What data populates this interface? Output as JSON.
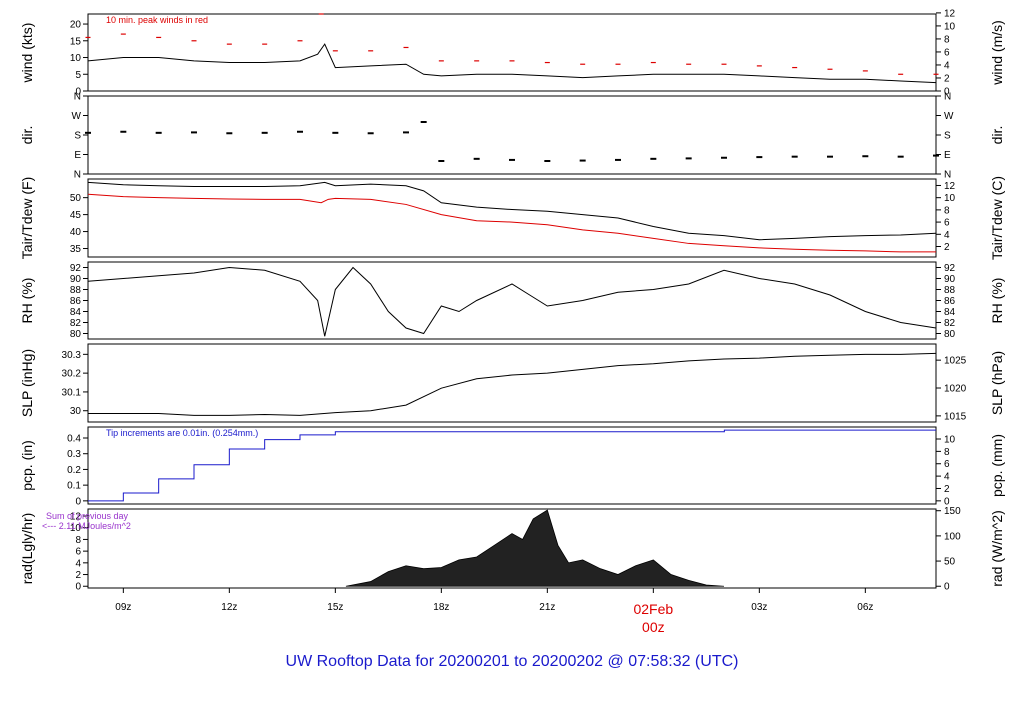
{
  "footer": {
    "title": "UW Rooftop Data for 20200201  to  20200202 @ 07:58:32  (UTC)",
    "title_color": "#1a1acc"
  },
  "time_axis": {
    "tick_labels": [
      "09z",
      "12z",
      "15z",
      "18z",
      "21z",
      "03z",
      "06z"
    ],
    "tick_hours": [
      9,
      12,
      15,
      18,
      21,
      27,
      30
    ],
    "date_label": "02Feb",
    "date_sublabel": "00z",
    "date_hour": 24,
    "date_color": "#dd0000",
    "range_hours": [
      8,
      32
    ]
  },
  "chart_data": [
    {
      "type": "line",
      "ylabel": "wind (kts)",
      "ylabel_right": "wind (m/s)",
      "yticks": [
        0,
        5,
        10,
        15,
        20
      ],
      "ylim": [
        0,
        23
      ],
      "yticks_right": [
        0,
        2,
        4,
        6,
        8,
        10,
        12
      ],
      "ylim_right": [
        0,
        11.83
      ],
      "annotation": "10 min. peak winds in red",
      "annotation_color": "#dd0000",
      "series": [
        {
          "color": "#000000",
          "x": [
            8,
            9,
            10,
            11,
            12,
            13,
            14,
            14.5,
            14.7,
            15,
            16,
            17,
            17.5,
            18,
            19,
            20,
            21,
            22,
            23,
            24,
            25,
            26,
            27,
            28,
            29,
            30,
            31,
            32
          ],
          "y": [
            9,
            10,
            10,
            9,
            8.5,
            8.5,
            9,
            11,
            14,
            7,
            7.5,
            8,
            5,
            4.5,
            5,
            5,
            4.5,
            4,
            4.5,
            5,
            5,
            5,
            4.5,
            4,
            3.5,
            3.5,
            3,
            2.5
          ]
        },
        {
          "color": "#dd0000",
          "style": "dash-marks",
          "x": [
            8,
            9,
            10,
            11,
            12,
            13,
            14,
            14.6,
            15,
            16,
            17,
            18,
            19,
            20,
            21,
            22,
            23,
            24,
            25,
            26,
            27,
            28,
            29,
            30,
            31,
            32
          ],
          "y": [
            16,
            17,
            16,
            15,
            14,
            14,
            15,
            23,
            12,
            12,
            13,
            9,
            9,
            9,
            8.5,
            8,
            8,
            8.5,
            8,
            8,
            7.5,
            7,
            6.5,
            6,
            5,
            5
          ]
        }
      ]
    },
    {
      "type": "scatter",
      "ylabel": "dir.",
      "ylabel_right": "dir.",
      "ytick_labels": [
        "N",
        "E",
        "S",
        "W",
        "N"
      ],
      "yticks": [
        0,
        90,
        180,
        270,
        360
      ],
      "ylim": [
        0,
        360
      ],
      "series": [
        {
          "color": "#000000",
          "x": [
            8,
            9,
            10,
            11,
            12,
            13,
            14,
            15,
            16,
            17,
            17.5,
            18,
            19,
            20,
            21,
            22,
            23,
            24,
            25,
            26,
            27,
            28,
            29,
            30,
            31,
            32
          ],
          "y": [
            190,
            195,
            190,
            192,
            188,
            190,
            195,
            190,
            188,
            192,
            240,
            60,
            70,
            65,
            60,
            62,
            65,
            70,
            72,
            75,
            78,
            80,
            80,
            82,
            80,
            85
          ]
        }
      ]
    },
    {
      "type": "line",
      "ylabel": "Tair/Tdew (F)",
      "ylabel_right": "Tair/Tdew (C)",
      "yticks": [
        35,
        40,
        45,
        50
      ],
      "ylim": [
        32.5,
        55.5
      ],
      "yticks_right": [
        2,
        4,
        6,
        8,
        10,
        12
      ],
      "ylim_right": [
        0.28,
        13.06
      ],
      "series": [
        {
          "color": "#000000",
          "x": [
            8,
            9,
            10,
            11,
            12,
            13,
            14,
            14.7,
            15,
            16,
            17,
            17.5,
            18,
            19,
            20,
            21,
            22,
            23,
            24,
            25,
            26,
            27,
            28,
            29,
            30,
            31,
            32
          ],
          "y": [
            54.5,
            53.8,
            53.5,
            53.3,
            53.3,
            53.3,
            53.5,
            54.5,
            53.5,
            54,
            53.5,
            52,
            48.5,
            47.2,
            46.5,
            46,
            45,
            44,
            41.5,
            39.5,
            38.8,
            37.6,
            38,
            38.5,
            38.8,
            39,
            39.5
          ]
        },
        {
          "color": "#dd0000",
          "x": [
            8,
            9,
            10,
            11,
            12,
            13,
            14,
            14.6,
            14.8,
            15,
            16,
            17,
            18,
            19,
            20,
            21,
            22,
            23,
            24,
            25,
            26,
            27,
            28,
            29,
            30,
            31,
            32
          ],
          "y": [
            51,
            50.3,
            50,
            49.8,
            49.6,
            49.5,
            49.5,
            48.5,
            49.5,
            49.8,
            49.5,
            48,
            45,
            43.2,
            42.8,
            42,
            40.5,
            39.5,
            38,
            36.5,
            35.8,
            35.2,
            34.8,
            34.5,
            34.3,
            34,
            34
          ]
        }
      ]
    },
    {
      "type": "line",
      "ylabel": "RH (%)",
      "ylabel_right": "RH (%)",
      "yticks": [
        80,
        82,
        84,
        86,
        88,
        90,
        92
      ],
      "ylim": [
        79,
        93
      ],
      "series": [
        {
          "color": "#000000",
          "x": [
            8,
            9,
            10,
            11,
            12,
            13,
            14,
            14.5,
            14.7,
            15,
            15.5,
            16,
            16.5,
            17,
            17.5,
            18,
            18.5,
            19,
            20,
            20.5,
            21,
            22,
            23,
            24,
            25,
            26,
            27,
            28,
            29,
            30,
            31,
            32
          ],
          "y": [
            89.5,
            90,
            90.5,
            91,
            92,
            91.5,
            89.5,
            86,
            79.5,
            88,
            92,
            89,
            84,
            81,
            80,
            85,
            84,
            86,
            89,
            87,
            85,
            86,
            87.5,
            88,
            89,
            91.5,
            90,
            89,
            87,
            84,
            82,
            81
          ]
        }
      ]
    },
    {
      "type": "line",
      "ylabel": "SLP (inHg)",
      "ylabel_right": "SLP (hPa)",
      "yticks": [
        30.0,
        30.1,
        30.2,
        30.3
      ],
      "ylim": [
        29.94,
        30.355
      ],
      "yticks_right": [
        1015,
        1020,
        1025
      ],
      "ylim_right": [
        1013.9,
        1027.9
      ],
      "series": [
        {
          "color": "#000000",
          "x": [
            8,
            9,
            10,
            11,
            12,
            13,
            14,
            15,
            16,
            17,
            18,
            19,
            20,
            21,
            22,
            23,
            24,
            25,
            26,
            27,
            28,
            29,
            30,
            31,
            32
          ],
          "y": [
            29.985,
            29.985,
            29.985,
            29.975,
            29.975,
            29.98,
            29.975,
            29.99,
            30.0,
            30.03,
            30.12,
            30.17,
            30.19,
            30.2,
            30.22,
            30.24,
            30.25,
            30.265,
            30.275,
            30.28,
            30.29,
            30.295,
            30.3,
            30.3,
            30.305
          ]
        }
      ]
    },
    {
      "type": "line",
      "ylabel": "pcp. (in)",
      "ylabel_right": "pcp. (mm)",
      "yticks": [
        0.0,
        0.1,
        0.2,
        0.3,
        0.4
      ],
      "ylim": [
        -0.02,
        0.47
      ],
      "yticks_right": [
        0,
        2,
        4,
        6,
        8,
        10
      ],
      "ylim_right": [
        -0.51,
        11.94
      ],
      "annotation": "Tip increments are 0.01in. (0.254mm.)",
      "annotation_color": "#1a1acc",
      "series": [
        {
          "color": "#1a1acc",
          "style": "step",
          "x": [
            8,
            9,
            10,
            11,
            12,
            13,
            14,
            15,
            16,
            17,
            18,
            20,
            22,
            24,
            26,
            26.01,
            28,
            30,
            32
          ],
          "y": [
            0.0,
            0.05,
            0.14,
            0.23,
            0.33,
            0.39,
            0.42,
            0.44,
            0.44,
            0.44,
            0.44,
            0.44,
            0.44,
            0.44,
            0.44,
            0.45,
            0.45,
            0.45,
            0.45
          ]
        }
      ]
    },
    {
      "type": "area",
      "ylabel": "rad(Lgly/hr)",
      "ylabel_right": "rad (W/m^2)",
      "yticks": [
        0,
        2,
        4,
        6,
        8,
        10,
        12
      ],
      "ylim": [
        -0.3,
        13.2
      ],
      "yticks_right": [
        0,
        50,
        100,
        150
      ],
      "ylim_right": [
        -3.5,
        153.4
      ],
      "annotation": "Sum of previous day",
      "annotation_line2": "<--- 2.11 MJoules/m^2",
      "annotation_color": "#9933cc",
      "series": [
        {
          "color": "#222222",
          "x": [
            15.3,
            16,
            16.5,
            17,
            17.5,
            18,
            18.5,
            19,
            19.5,
            20,
            20.3,
            20.6,
            21,
            21.3,
            21.6,
            22,
            22.5,
            23,
            23.5,
            24,
            24.5,
            25,
            25.5,
            26
          ],
          "y": [
            0,
            0.8,
            2.5,
            3.5,
            3,
            3.2,
            4.5,
            5,
            7,
            9,
            8,
            11.5,
            13,
            7,
            4,
            4.5,
            3,
            2,
            3.5,
            4.5,
            2,
            1,
            0.2,
            0
          ]
        }
      ]
    }
  ]
}
